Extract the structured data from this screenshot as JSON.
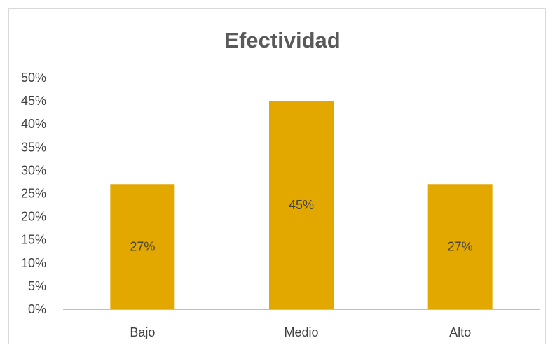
{
  "colors": {
    "bar": "#e2a800",
    "axis": "#bfbfbf",
    "text": "#404040",
    "title": "#595959"
  },
  "chart_data": {
    "type": "bar",
    "title": "Efectividad",
    "xlabel": "",
    "ylabel": "",
    "categories": [
      "Bajo",
      "Medio",
      "Alto"
    ],
    "values": [
      27,
      45,
      27
    ],
    "data_labels": [
      "27%",
      "45%",
      "27%"
    ],
    "ylim": [
      0,
      50
    ],
    "yticks": [
      0,
      5,
      10,
      15,
      20,
      25,
      30,
      35,
      40,
      45,
      50
    ],
    "ytick_labels": [
      "0%",
      "5%",
      "10%",
      "15%",
      "20%",
      "25%",
      "30%",
      "35%",
      "40%",
      "45%",
      "50%"
    ],
    "grid": false,
    "legend": "none"
  }
}
